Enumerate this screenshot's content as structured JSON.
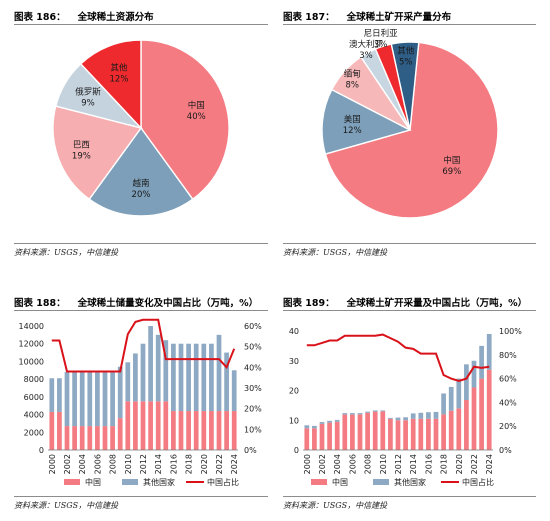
{
  "colors": {
    "china": "#f47b82",
    "vietnam": "#7d9fb9",
    "brazil": "#f6aeb0",
    "russia": "#c5d3de",
    "other_red": "#ee2a2e",
    "us": "#7d9fb9",
    "myanmar": "#f6b8b9",
    "australia": "#c8d6e1",
    "nigeria": "#ee2a2e",
    "other_blue": "#2e5d86",
    "bar_other": "#8ea9c3",
    "line": "#d9121a"
  },
  "panels": [
    {
      "label": "图表 186：",
      "title": "全球稀土资源分布",
      "source": "资料来源：USGS，中信建投"
    },
    {
      "label": "图表 187：",
      "title": "全球稀土矿开采产量分布",
      "source": "资料来源：USGS，中信建投"
    },
    {
      "label": "图表 188：",
      "title": "全球稀土储量变化及中国占比（万吨，%）",
      "source": "资料来源：USGS，中信建投"
    },
    {
      "label": "图表 189：",
      "title": "全球稀土矿开采量及中国占比（万吨，%）",
      "source": "资料来源：USGS，中信建投"
    }
  ],
  "chart_data": [
    {
      "type": "pie",
      "title": "全球稀土资源分布",
      "slices": [
        {
          "name": "中国",
          "value": 40,
          "label": "40%",
          "color_key": "china"
        },
        {
          "name": "越南",
          "value": 20,
          "label": "20%",
          "color_key": "vietnam"
        },
        {
          "name": "巴西",
          "value": 19,
          "label": "19%",
          "color_key": "brazil"
        },
        {
          "name": "俄罗斯",
          "value": 9,
          "label": "9%",
          "color_key": "russia"
        },
        {
          "name": "其他",
          "value": 12,
          "label": "12%",
          "color_key": "other_red"
        }
      ]
    },
    {
      "type": "pie",
      "title": "全球稀土矿开采产量分布",
      "slices": [
        {
          "name": "中国",
          "value": 69,
          "label": "69%",
          "color_key": "china"
        },
        {
          "name": "美国",
          "value": 12,
          "label": "12%",
          "color_key": "us"
        },
        {
          "name": "缅甸",
          "value": 8,
          "label": "8%",
          "color_key": "myanmar"
        },
        {
          "name": "澳大利亚",
          "value": 3,
          "label": "3%",
          "color_key": "australia"
        },
        {
          "name": "尼日利亚",
          "value": 3,
          "label": "3%",
          "color_key": "nigeria"
        },
        {
          "name": "其他",
          "value": 5,
          "label": "5%",
          "color_key": "other_blue"
        }
      ]
    },
    {
      "type": "bar",
      "title": "全球稀土储量变化及中国占比（万吨，%）",
      "stacked": true,
      "categories": [
        "2000",
        "2001",
        "2002",
        "2003",
        "2004",
        "2005",
        "2006",
        "2007",
        "2008",
        "2009",
        "2010",
        "2011",
        "2012",
        "2013",
        "2014",
        "2015",
        "2016",
        "2017",
        "2018",
        "2019",
        "2020",
        "2021",
        "2022",
        "2023",
        "2024"
      ],
      "x_tick_labels": [
        "2000",
        "2002",
        "2004",
        "2006",
        "2008",
        "2010",
        "2012",
        "2014",
        "2016",
        "2018",
        "2020",
        "2022",
        "2024"
      ],
      "series": [
        {
          "name": "中国",
          "kind": "bar",
          "color_key": "china",
          "values": [
            4300,
            4300,
            2700,
            2700,
            2700,
            2700,
            2700,
            2700,
            2700,
            3600,
            5500,
            5500,
            5500,
            5500,
            5500,
            5500,
            4400,
            4400,
            4400,
            4400,
            4400,
            4400,
            4400,
            4400,
            4400
          ]
        },
        {
          "name": "其他国家",
          "kind": "bar",
          "color_key": "bar_other",
          "values": [
            3800,
            3800,
            6100,
            6100,
            6100,
            6100,
            6100,
            6100,
            6100,
            5800,
            4400,
            5400,
            6500,
            8500,
            7500,
            6900,
            7600,
            7600,
            7600,
            7600,
            7600,
            7600,
            8600,
            6600,
            4600
          ]
        },
        {
          "name": "中国占比",
          "kind": "line",
          "axis": "right",
          "color_key": "line",
          "values": [
            53,
            53,
            38,
            38,
            38,
            38,
            38,
            38,
            38,
            38,
            56,
            62,
            63,
            63,
            63,
            44,
            44,
            44,
            44,
            44,
            44,
            44,
            44,
            40,
            49
          ]
        }
      ],
      "ylim": [
        0,
        14000
      ],
      "y_ticks": [
        0,
        2000,
        4000,
        6000,
        8000,
        10000,
        12000,
        14000
      ],
      "y2lim": [
        0,
        60
      ],
      "y2_ticks": [
        "0%",
        "10%",
        "20%",
        "30%",
        "40%",
        "50%",
        "60%"
      ],
      "y2_tick_values": [
        0,
        10,
        20,
        30,
        40,
        50,
        60
      ],
      "legend": [
        "中国",
        "其他国家",
        "中国占比"
      ],
      "legend_position": "bottom"
    },
    {
      "type": "bar",
      "title": "全球稀土矿开采量及中国占比（万吨，%）",
      "stacked": true,
      "categories": [
        "2000",
        "2001",
        "2002",
        "2003",
        "2004",
        "2005",
        "2006",
        "2007",
        "2008",
        "2009",
        "2010",
        "2011",
        "2012",
        "2013",
        "2014",
        "2015",
        "2016",
        "2017",
        "2018",
        "2019",
        "2020",
        "2021",
        "2022",
        "2023",
        "2024"
      ],
      "x_tick_labels": [
        "2000",
        "2002",
        "2004",
        "2006",
        "2008",
        "2010",
        "2012",
        "2014",
        "2016",
        "2018",
        "2020",
        "2022",
        "2024"
      ],
      "series": [
        {
          "name": "中国",
          "kind": "bar",
          "color_key": "china",
          "values": [
            7.3,
            7.3,
            8.8,
            9.2,
            9.5,
            11.9,
            11.9,
            12.0,
            12.5,
            12.9,
            13.0,
            10.5,
            10.0,
            10.0,
            10.5,
            10.5,
            10.5,
            10.5,
            12.0,
            13.2,
            14.0,
            16.8,
            21.0,
            24.0,
            27.0
          ]
        },
        {
          "name": "其他国家",
          "kind": "bar",
          "color_key": "bar_other",
          "values": [
            1.0,
            0.8,
            0.6,
            0.6,
            0.6,
            0.5,
            0.5,
            0.4,
            0.4,
            0.4,
            0.3,
            0.3,
            0.9,
            1.0,
            1.8,
            2.0,
            2.2,
            2.3,
            7.0,
            8.0,
            10.0,
            12.0,
            9.0,
            11.0,
            12.0
          ]
        },
        {
          "name": "中国占比",
          "kind": "line",
          "axis": "right",
          "color_key": "line",
          "values": [
            88,
            88,
            90,
            92,
            92,
            96,
            96,
            96,
            96,
            96,
            97,
            94,
            91,
            86,
            85,
            81,
            81,
            81,
            63,
            60,
            58,
            60,
            70,
            69,
            70
          ]
        }
      ],
      "ylim": [
        0,
        40
      ],
      "y_ticks": [
        0,
        10,
        20,
        30,
        40
      ],
      "y2lim": [
        0,
        100
      ],
      "y2_ticks": [
        "0%",
        "20%",
        "40%",
        "60%",
        "80%",
        "100%"
      ],
      "y2_tick_values": [
        0,
        20,
        40,
        60,
        80,
        100
      ],
      "legend": [
        "中国",
        "其他国家",
        "中国占比"
      ],
      "legend_position": "bottom"
    }
  ]
}
